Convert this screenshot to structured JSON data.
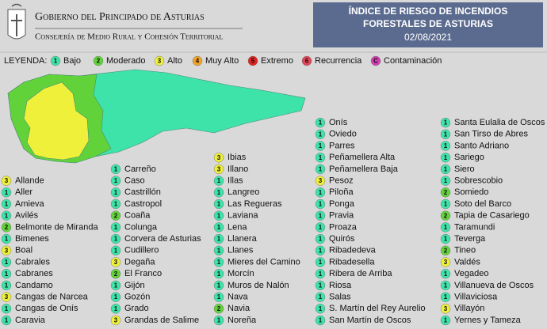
{
  "header": {
    "org": "Gobierno del Principado de Asturias",
    "department": "Consejería de Medio Rural y Cohesión Territorial",
    "title_lines": [
      "ÍNDICE DE RIESGO DE INCENDIOS",
      "FORESTALES DE ASTURIAS"
    ],
    "date": "02/08/2021"
  },
  "legend": {
    "title": "LEYENDA:",
    "items": [
      {
        "level": "1",
        "label": "Bajo",
        "color": "#3de3a8"
      },
      {
        "level": "2",
        "label": "Moderado",
        "color": "#62d23a"
      },
      {
        "level": "3",
        "label": "Alto",
        "color": "#eef03a"
      },
      {
        "level": "4",
        "label": "Muy Alto",
        "color": "#f2a224"
      },
      {
        "level": "5",
        "label": "Extremo",
        "color": "#e0231f"
      },
      {
        "level": "6",
        "label": "Recurrencia",
        "color": "#e24458"
      },
      {
        "level": "C",
        "label": "Contaminación",
        "color": "#d43fb2"
      }
    ]
  },
  "columns": [
    [
      {
        "name": "Allande",
        "level": "3"
      },
      {
        "name": "Aller",
        "level": "1"
      },
      {
        "name": "Amieva",
        "level": "1"
      },
      {
        "name": "Avilés",
        "level": "1"
      },
      {
        "name": "Belmonte de Miranda",
        "level": "2"
      },
      {
        "name": "Bimenes",
        "level": "1"
      },
      {
        "name": "Boal",
        "level": "3"
      },
      {
        "name": "Cabrales",
        "level": "1"
      },
      {
        "name": "Cabranes",
        "level": "1"
      },
      {
        "name": "Candamo",
        "level": "1"
      },
      {
        "name": "Cangas de Narcea",
        "level": "3"
      },
      {
        "name": "Cangas de Onís",
        "level": "1"
      },
      {
        "name": "Caravia",
        "level": "1"
      }
    ],
    [
      {
        "name": "Carreño",
        "level": "1"
      },
      {
        "name": "Caso",
        "level": "1"
      },
      {
        "name": "Castrillón",
        "level": "1"
      },
      {
        "name": "Castropol",
        "level": "1"
      },
      {
        "name": "Coaña",
        "level": "2"
      },
      {
        "name": "Colunga",
        "level": "1"
      },
      {
        "name": "Corvera de Asturias",
        "level": "1"
      },
      {
        "name": "Cudillero",
        "level": "1"
      },
      {
        "name": "Degaña",
        "level": "3"
      },
      {
        "name": "El Franco",
        "level": "2"
      },
      {
        "name": "Gijón",
        "level": "1"
      },
      {
        "name": "Gozón",
        "level": "1"
      },
      {
        "name": "Grado",
        "level": "1"
      },
      {
        "name": "Grandas de Salime",
        "level": "3"
      }
    ],
    [
      {
        "name": "Ibias",
        "level": "3"
      },
      {
        "name": "Illano",
        "level": "3"
      },
      {
        "name": "Illas",
        "level": "1"
      },
      {
        "name": "Langreo",
        "level": "1"
      },
      {
        "name": "Las Regueras",
        "level": "1"
      },
      {
        "name": "Laviana",
        "level": "1"
      },
      {
        "name": "Lena",
        "level": "1"
      },
      {
        "name": "Llanera",
        "level": "1"
      },
      {
        "name": "Llanes",
        "level": "1"
      },
      {
        "name": "Mieres del Camino",
        "level": "1"
      },
      {
        "name": "Morcín",
        "level": "1"
      },
      {
        "name": "Muros de Nalón",
        "level": "1"
      },
      {
        "name": "Nava",
        "level": "1"
      },
      {
        "name": "Navia",
        "level": "2"
      },
      {
        "name": "Noreña",
        "level": "1"
      }
    ],
    [
      {
        "name": "Onís",
        "level": "1"
      },
      {
        "name": "Oviedo",
        "level": "1"
      },
      {
        "name": "Parres",
        "level": "1"
      },
      {
        "name": "Peñamellera Alta",
        "level": "1"
      },
      {
        "name": "Peñamellera Baja",
        "level": "1"
      },
      {
        "name": "Pesoz",
        "level": "3"
      },
      {
        "name": "Piloña",
        "level": "1"
      },
      {
        "name": "Ponga",
        "level": "1"
      },
      {
        "name": "Pravia",
        "level": "1"
      },
      {
        "name": "Proaza",
        "level": "1"
      },
      {
        "name": "Quirós",
        "level": "1"
      },
      {
        "name": "Ribadedeva",
        "level": "1"
      },
      {
        "name": "Ribadesella",
        "level": "1"
      },
      {
        "name": "Ribera de Arriba",
        "level": "1"
      },
      {
        "name": "Riosa",
        "level": "1"
      },
      {
        "name": "Salas",
        "level": "1"
      },
      {
        "name": "S. Martín del Rey Aurelio",
        "level": "1"
      },
      {
        "name": "San Martín de Oscos",
        "level": "1"
      }
    ],
    [
      {
        "name": "Santa Eulalia de Oscos",
        "level": "1"
      },
      {
        "name": "San Tirso de Abres",
        "level": "1"
      },
      {
        "name": "Santo Adriano",
        "level": "1"
      },
      {
        "name": "Sariego",
        "level": "1"
      },
      {
        "name": "Siero",
        "level": "1"
      },
      {
        "name": "Sobrescobio",
        "level": "1"
      },
      {
        "name": "Somiedo",
        "level": "2"
      },
      {
        "name": "Soto del Barco",
        "level": "1"
      },
      {
        "name": "Tapia de Casariego",
        "level": "2"
      },
      {
        "name": "Taramundi",
        "level": "1"
      },
      {
        "name": "Teverga",
        "level": "1"
      },
      {
        "name": "Tineo",
        "level": "2"
      },
      {
        "name": "Valdés",
        "level": "3"
      },
      {
        "name": "Vegadeo",
        "level": "1"
      },
      {
        "name": "Villanueva de Oscos",
        "level": "1"
      },
      {
        "name": "Villaviciosa",
        "level": "1"
      },
      {
        "name": "Villayón",
        "level": "3"
      },
      {
        "name": "Yernes y Tameza",
        "level": "1"
      }
    ]
  ]
}
